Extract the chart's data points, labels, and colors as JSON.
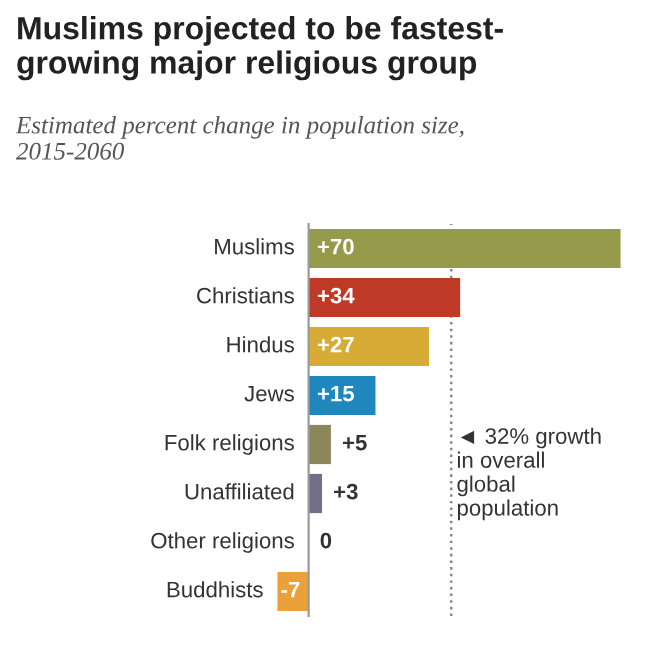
{
  "chart_data": {
    "type": "bar",
    "orientation": "horizontal",
    "title": "Muslims projected to be fastest-growing major religious group",
    "subtitle": "Estimated percent change in population size, 2015-2060",
    "categories": [
      "Muslims",
      "Christians",
      "Hindus",
      "Jews",
      "Folk religions",
      "Unaffiliated",
      "Other religions",
      "Buddhists"
    ],
    "values": [
      70,
      34,
      27,
      15,
      5,
      3,
      0,
      -7
    ],
    "colors": [
      "#959b4b",
      "#be3a26",
      "#d8ab36",
      "#1f87bd",
      "#8c8758",
      "#726f88",
      "#999999",
      "#eba13a"
    ],
    "value_labels": [
      "+70",
      "+34",
      "+27",
      "+15",
      "+5",
      "+3",
      "0",
      "-7"
    ],
    "ref_lines": [
      {
        "axis": "x",
        "value": 32,
        "label": "◄ 32% growth in overall global population",
        "color": "#888888",
        "line_style": "dotted"
      }
    ]
  }
}
